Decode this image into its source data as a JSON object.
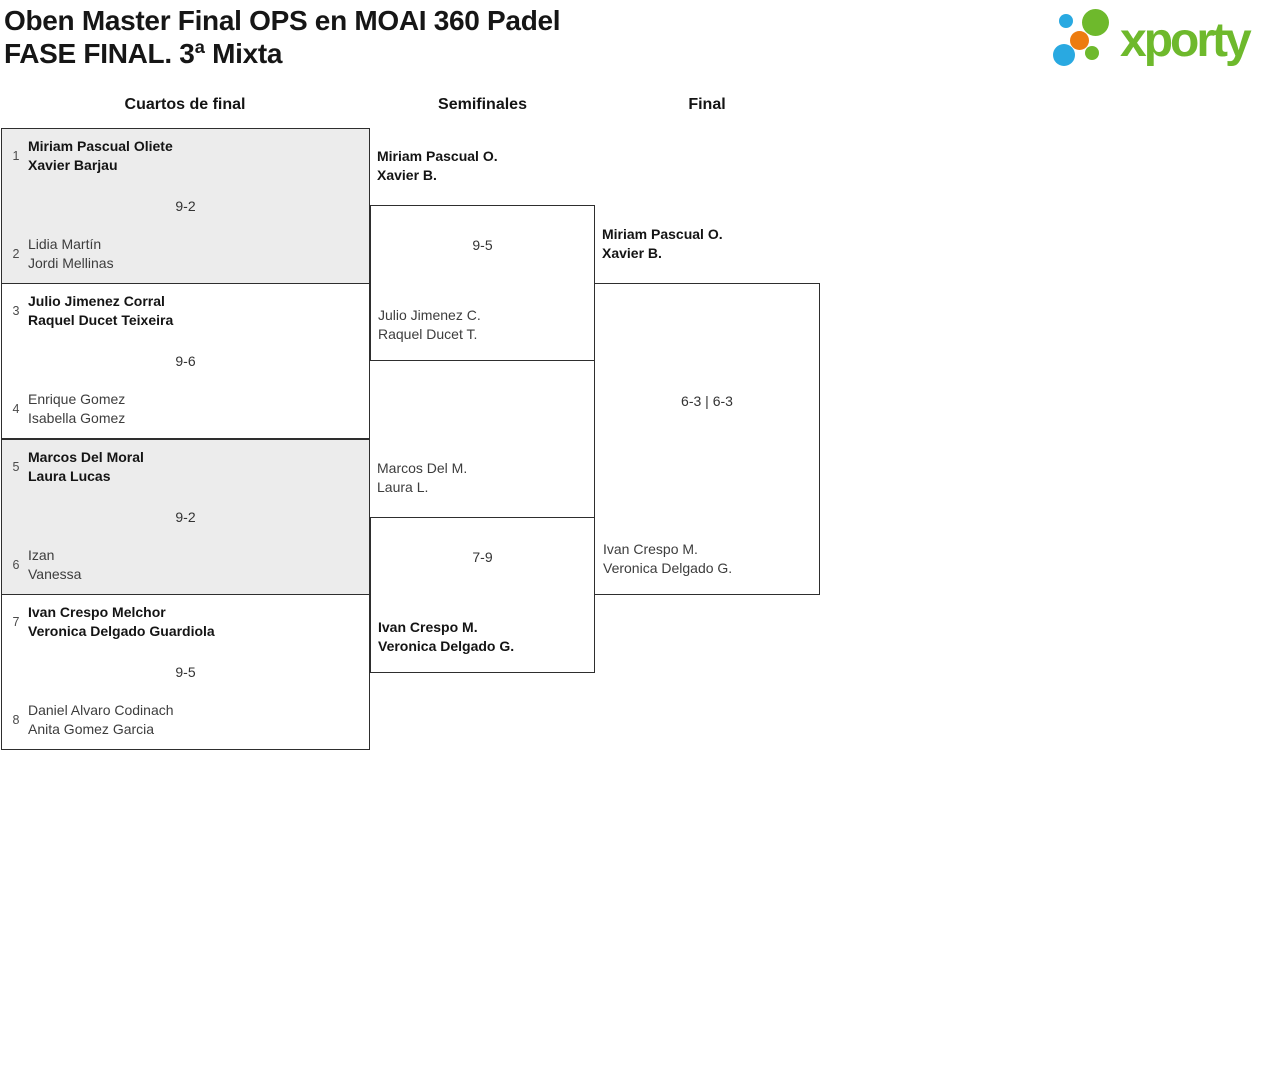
{
  "header": {
    "title_line1": "Oben Master Final OPS en MOAI 360 Padel",
    "title_line2": "FASE FINAL. 3ª Mixta"
  },
  "logo": {
    "text": "xporty"
  },
  "colors": {
    "logo-green": "#6eb92c",
    "logo-blue": "#29a9e1",
    "logo-orange": "#ed7c0f",
    "line": "#2e2e2e",
    "shaded-bg": "#ececec",
    "text-dark": "#141414",
    "text-regular": "#3d3d3d",
    "seed": "#4a4a4a"
  },
  "round_headers": [
    "Cuartos de final",
    "Semifinales",
    "Final"
  ],
  "quarterfinals": [
    {
      "seed_top": "1",
      "team_top": [
        "Miriam Pascual Oliete",
        "Xavier Barjau"
      ],
      "top_winner": true,
      "score": "9-2",
      "seed_bottom": "2",
      "team_bottom": [
        "Lidia Martín",
        "Jordi Mellinas"
      ],
      "bottom_winner": false,
      "shaded": true
    },
    {
      "seed_top": "3",
      "team_top": [
        "Julio Jimenez Corral",
        "Raquel Ducet Teixeira"
      ],
      "top_winner": true,
      "score": "9-6",
      "seed_bottom": "4",
      "team_bottom": [
        "Enrique Gomez",
        "Isabella Gomez"
      ],
      "bottom_winner": false,
      "shaded": false
    },
    {
      "seed_top": "5",
      "team_top": [
        "Marcos Del Moral",
        "Laura Lucas"
      ],
      "top_winner": true,
      "score": "9-2",
      "seed_bottom": "6",
      "team_bottom": [
        "Izan",
        "Vanessa"
      ],
      "bottom_winner": false,
      "shaded": true
    },
    {
      "seed_top": "7",
      "team_top": [
        "Ivan Crespo Melchor",
        "Veronica Delgado Guardiola"
      ],
      "top_winner": true,
      "score": "9-5",
      "seed_bottom": "8",
      "team_bottom": [
        "Daniel Alvaro Codinach",
        "Anita Gomez Garcia"
      ],
      "bottom_winner": false,
      "shaded": false
    }
  ],
  "semifinals": [
    {
      "top_team": [
        "Miriam Pascual O.",
        "Xavier B."
      ],
      "top_winner": true,
      "score": "9-5",
      "bottom_team": [
        "Julio Jimenez C.",
        "Raquel Ducet T."
      ],
      "bottom_winner": false
    },
    {
      "top_team": [
        "Marcos Del M.",
        "Laura L."
      ],
      "top_winner": false,
      "score": "7-9",
      "bottom_team": [
        "Ivan Crespo M.",
        "Veronica Delgado G."
      ],
      "bottom_winner": true
    }
  ],
  "final": {
    "top_team": [
      "Miriam Pascual O.",
      "Xavier B."
    ],
    "top_winner": true,
    "score": "6-3 | 6-3",
    "bottom_team": [
      "Ivan Crespo M.",
      "Veronica Delgado G."
    ],
    "bottom_winner": false
  }
}
